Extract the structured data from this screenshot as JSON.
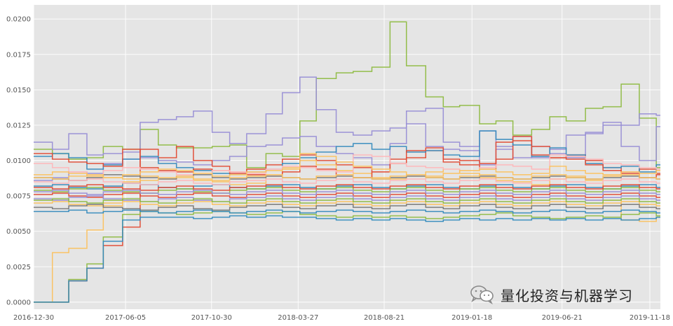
{
  "colors": {
    "plot_background": "#e5e5e5",
    "grid": "#ffffff",
    "palette": [
      "#348abd",
      "#e24a33",
      "#988ed5",
      "#777777",
      "#fbc15e",
      "#8eba42",
      "#ffb5b8",
      "#4a90b8",
      "#c9533b",
      "#a3a3d6",
      "#f2a541",
      "#7fa849",
      "#e89a9d",
      "#5b5b5b"
    ]
  },
  "watermark": {
    "icon": "wechat-icon",
    "text": "量化投资与机器学习"
  },
  "chart_data": {
    "type": "line",
    "title": "",
    "xlabel": "",
    "ylabel": "",
    "x_dates": [
      "2016-12-30",
      "2017-01-31",
      "2017-02-28",
      "2017-03-31",
      "2017-04-28",
      "2017-05-31",
      "2017-06-30",
      "2017-07-31",
      "2017-08-31",
      "2017-09-29",
      "2017-10-31",
      "2017-11-30",
      "2017-12-29",
      "2018-01-31",
      "2018-02-28",
      "2018-03-30",
      "2018-04-27",
      "2018-05-31",
      "2018-06-29",
      "2018-07-31",
      "2018-08-31",
      "2018-09-28",
      "2018-10-31",
      "2018-11-30",
      "2018-12-28",
      "2019-01-31",
      "2019-02-28",
      "2019-03-29",
      "2019-04-30",
      "2019-05-31",
      "2019-06-28",
      "2019-07-31",
      "2019-08-30",
      "2019-09-30",
      "2019-10-31",
      "2019-11-29"
    ],
    "xlim": [
      "2016-12-30",
      "2019-12-06"
    ],
    "x_ticks": [
      "2016-12-30",
      "2017-06-05",
      "2017-10-30",
      "2018-03-27",
      "2018-08-21",
      "2019-01-18",
      "2019-06-21",
      "2019-11-18"
    ],
    "ylim": [
      -0.0005,
      0.021
    ],
    "y_ticks": [
      "0.0000",
      "0.0025",
      "0.0050",
      "0.0075",
      "0.0100",
      "0.0125",
      "0.0150",
      "0.0175",
      "0.0200"
    ],
    "y_tick_values": [
      0,
      0.0025,
      0.005,
      0.0075,
      0.01,
      0.0125,
      0.015,
      0.0175,
      0.02
    ],
    "grid": true,
    "legend": "none",
    "series": [
      {
        "color": "#8eba42",
        "values": [
          0.0108,
          0.0105,
          0.0101,
          0.0102,
          0.011,
          0.0108,
          0.0122,
          0.0111,
          0.0109,
          0.0109,
          0.011,
          0.0111,
          0.0095,
          0.0105,
          0.0103,
          0.0128,
          0.0158,
          0.0162,
          0.0163,
          0.0166,
          0.0198,
          0.0167,
          0.0145,
          0.0138,
          0.0139,
          0.0126,
          0.0128,
          0.0118,
          0.0122,
          0.0131,
          0.0128,
          0.0137,
          0.0138,
          0.0154,
          0.013,
          0.0095
        ]
      },
      {
        "color": "#988ed5",
        "values": [
          0.0113,
          0.0108,
          0.0119,
          0.0104,
          0.0105,
          0.0106,
          0.0127,
          0.0129,
          0.0131,
          0.0135,
          0.012,
          0.0112,
          0.0119,
          0.0133,
          0.0148,
          0.0159,
          0.0136,
          0.012,
          0.0118,
          0.0121,
          0.0123,
          0.0135,
          0.0137,
          0.0113,
          0.011,
          0.0121,
          0.011,
          0.0117,
          0.0102,
          0.0108,
          0.0118,
          0.0119,
          0.0127,
          0.0125,
          0.0133,
          0.0132
        ]
      },
      {
        "color": "#988ed5",
        "values": [
          0.0086,
          0.0088,
          0.0092,
          0.0091,
          0.0098,
          0.0101,
          0.0102,
          0.01,
          0.0099,
          0.0097,
          0.01,
          0.0103,
          0.011,
          0.0111,
          0.0116,
          0.0117,
          0.011,
          0.0105,
          0.0102,
          0.0097,
          0.0112,
          0.0126,
          0.011,
          0.0108,
          0.0107,
          0.0097,
          0.0108,
          0.0102,
          0.011,
          0.0105,
          0.0102,
          0.012,
          0.0125,
          0.011,
          0.01,
          0.0124
        ]
      },
      {
        "color": "#e24a33",
        "values": [
          0.0,
          0.0,
          0.0015,
          0.0024,
          0.004,
          0.0053,
          0.0108,
          0.0102,
          0.011,
          0.01,
          0.0096,
          0.0092,
          0.0094,
          0.0097,
          0.0101,
          0.0104,
          0.01,
          0.0097,
          0.0095,
          0.0092,
          0.0098,
          0.0102,
          0.0107,
          0.0099,
          0.0097,
          0.0094,
          0.0101,
          0.0114,
          0.011,
          0.0102,
          0.0104,
          0.01,
          0.0095,
          0.0092,
          0.0094,
          0.0091
        ]
      },
      {
        "color": "#fbc15e",
        "values": [
          0.0,
          0.0035,
          0.0038,
          0.0051,
          0.0068,
          0.0085,
          0.0089,
          0.0087,
          0.0088,
          0.0086,
          0.0085,
          0.0083,
          0.0084,
          0.009,
          0.0095,
          0.01,
          0.0097,
          0.0093,
          0.0091,
          0.0088,
          0.0087,
          0.0089,
          0.0092,
          0.0094,
          0.0091,
          0.0088,
          0.0086,
          0.0085,
          0.0083,
          0.0087,
          0.0089,
          0.0086,
          0.0072,
          0.0058,
          0.0057,
          0.006
        ]
      },
      {
        "color": "#8eba42",
        "values": [
          0.0,
          0.0,
          0.0016,
          0.0027,
          0.0046,
          0.0062,
          0.0064,
          0.0063,
          0.0062,
          0.0063,
          0.0064,
          0.0063,
          0.0062,
          0.0063,
          0.0064,
          0.0062,
          0.0061,
          0.006,
          0.0061,
          0.006,
          0.0061,
          0.006,
          0.0059,
          0.006,
          0.0061,
          0.0062,
          0.0063,
          0.0061,
          0.006,
          0.0059,
          0.006,
          0.0061,
          0.006,
          0.0062,
          0.0063,
          0.0061
        ]
      },
      {
        "color": "#348abd",
        "values": [
          0.0,
          0.0,
          0.0015,
          0.0024,
          0.0043,
          0.0058,
          0.006,
          0.006,
          0.006,
          0.0059,
          0.006,
          0.0061,
          0.006,
          0.0061,
          0.006,
          0.006,
          0.0059,
          0.0058,
          0.0059,
          0.0058,
          0.0059,
          0.0058,
          0.0057,
          0.0058,
          0.0059,
          0.0058,
          0.0059,
          0.0058,
          0.0059,
          0.0058,
          0.0059,
          0.0058,
          0.0059,
          0.0058,
          0.0059,
          0.006
        ]
      },
      {
        "color": "#348abd",
        "values": [
          0.0103,
          0.0105,
          0.0102,
          0.0094,
          0.0097,
          0.0101,
          0.0103,
          0.0098,
          0.0095,
          0.0093,
          0.0091,
          0.009,
          0.0092,
          0.0094,
          0.0098,
          0.0102,
          0.0106,
          0.011,
          0.0112,
          0.0108,
          0.011,
          0.0106,
          0.0107,
          0.0104,
          0.0103,
          0.0121,
          0.0115,
          0.0111,
          0.0103,
          0.0109,
          0.0104,
          0.0098,
          0.0095,
          0.0096,
          0.0092,
          0.0097
        ]
      },
      {
        "color": "#e24a33",
        "values": [
          0.0105,
          0.0101,
          0.0099,
          0.0098,
          0.0096,
          0.0108,
          0.0095,
          0.0093,
          0.0092,
          0.0094,
          0.0093,
          0.0091,
          0.009,
          0.0089,
          0.0092,
          0.0096,
          0.0094,
          0.009,
          0.0088,
          0.0092,
          0.0101,
          0.0107,
          0.0109,
          0.0101,
          0.01,
          0.0098,
          0.0113,
          0.0117,
          0.0104,
          0.0102,
          0.0101,
          0.0097,
          0.0093,
          0.0091,
          0.0088,
          0.009
        ]
      },
      {
        "color": "#ffb5b8",
        "values": [
          0.0098,
          0.0095,
          0.0092,
          0.009,
          0.0093,
          0.0095,
          0.0094,
          0.0092,
          0.009,
          0.0091,
          0.0093,
          0.0092,
          0.0091,
          0.0094,
          0.0096,
          0.0095,
          0.0093,
          0.0092,
          0.0104,
          0.0103,
          0.0098,
          0.0096,
          0.0095,
          0.0094,
          0.0093,
          0.0095,
          0.0097,
          0.0096,
          0.0094,
          0.0104,
          0.0103,
          0.0101,
          0.0098,
          0.0097,
          0.0095,
          0.0094
        ]
      },
      {
        "color": "#777777",
        "values": [
          0.0088,
          0.0087,
          0.0086,
          0.0088,
          0.009,
          0.0089,
          0.0088,
          0.0087,
          0.0089,
          0.009,
          0.0088,
          0.0087,
          0.0088,
          0.0089,
          0.0088,
          0.0087,
          0.0088,
          0.0089,
          0.0088,
          0.0087,
          0.0088,
          0.0089,
          0.0088,
          0.0087,
          0.0088,
          0.0089,
          0.0088,
          0.0087,
          0.0088,
          0.0089,
          0.0088,
          0.0087,
          0.0088,
          0.0089,
          0.0088,
          0.0087
        ]
      },
      {
        "color": "#fbc15e",
        "values": [
          0.009,
          0.0092,
          0.0091,
          0.0089,
          0.0088,
          0.009,
          0.0092,
          0.0094,
          0.0093,
          0.0091,
          0.0089,
          0.009,
          0.0092,
          0.0093,
          0.0094,
          0.0105,
          0.0103,
          0.0099,
          0.0096,
          0.0094,
          0.0092,
          0.009,
          0.0089,
          0.0091,
          0.0093,
          0.0094,
          0.0092,
          0.009,
          0.0091,
          0.0096,
          0.0093,
          0.0091,
          0.009,
          0.0092,
          0.0091,
          0.0093
        ]
      },
      {
        "color": "#348abd",
        "values": [
          0.0082,
          0.0083,
          0.0081,
          0.008,
          0.0082,
          0.0084,
          0.0083,
          0.0081,
          0.008,
          0.0082,
          0.0083,
          0.0081,
          0.008,
          0.0082,
          0.0083,
          0.0081,
          0.008,
          0.0082,
          0.0083,
          0.0081,
          0.008,
          0.0082,
          0.0083,
          0.0081,
          0.008,
          0.0082,
          0.0083,
          0.0081,
          0.008,
          0.0082,
          0.0083,
          0.0081,
          0.008,
          0.0082,
          0.0083,
          0.0081
        ]
      },
      {
        "color": "#8eba42",
        "values": [
          0.0079,
          0.0078,
          0.008,
          0.0081,
          0.0079,
          0.0078,
          0.0077,
          0.0079,
          0.008,
          0.0078,
          0.0077,
          0.0079,
          0.008,
          0.0081,
          0.0079,
          0.0078,
          0.008,
          0.0081,
          0.0079,
          0.0078,
          0.008,
          0.0081,
          0.0079,
          0.0078,
          0.008,
          0.0081,
          0.0079,
          0.0078,
          0.008,
          0.0081,
          0.0079,
          0.0078,
          0.008,
          0.0081,
          0.0079,
          0.0078
        ]
      },
      {
        "color": "#e24a33",
        "values": [
          0.0076,
          0.0077,
          0.0075,
          0.0074,
          0.0076,
          0.0077,
          0.0075,
          0.0074,
          0.0076,
          0.0077,
          0.0075,
          0.0074,
          0.0076,
          0.0077,
          0.0075,
          0.0074,
          0.0076,
          0.0077,
          0.0075,
          0.0074,
          0.0076,
          0.0077,
          0.0075,
          0.0074,
          0.0076,
          0.0077,
          0.0075,
          0.0074,
          0.0076,
          0.0077,
          0.0075,
          0.0074,
          0.0076,
          0.0077,
          0.0075,
          0.0074
        ]
      },
      {
        "color": "#988ed5",
        "values": [
          0.0073,
          0.0072,
          0.0074,
          0.0075,
          0.0073,
          0.0072,
          0.0071,
          0.0073,
          0.0074,
          0.0072,
          0.0071,
          0.0073,
          0.0074,
          0.0075,
          0.0073,
          0.0072,
          0.0074,
          0.0075,
          0.0073,
          0.0072,
          0.0074,
          0.0075,
          0.0073,
          0.0072,
          0.0074,
          0.0075,
          0.0073,
          0.0072,
          0.0074,
          0.0075,
          0.0073,
          0.0072,
          0.0074,
          0.0075,
          0.0073,
          0.0072
        ]
      },
      {
        "color": "#fbc15e",
        "values": [
          0.007,
          0.0071,
          0.0069,
          0.0068,
          0.007,
          0.0071,
          0.0069,
          0.0068,
          0.007,
          0.0071,
          0.0069,
          0.0068,
          0.007,
          0.0071,
          0.0069,
          0.0068,
          0.007,
          0.0071,
          0.0069,
          0.0068,
          0.007,
          0.0071,
          0.0069,
          0.0068,
          0.007,
          0.0071,
          0.0069,
          0.0068,
          0.007,
          0.0071,
          0.0069,
          0.0068,
          0.007,
          0.0071,
          0.0069,
          0.0068
        ]
      },
      {
        "color": "#777777",
        "values": [
          0.0067,
          0.0066,
          0.0068,
          0.0069,
          0.0067,
          0.0066,
          0.0065,
          0.0067,
          0.0068,
          0.0066,
          0.0065,
          0.0067,
          0.0068,
          0.0069,
          0.0067,
          0.0066,
          0.0068,
          0.0069,
          0.0067,
          0.0066,
          0.0068,
          0.0069,
          0.0067,
          0.0066,
          0.0068,
          0.0069,
          0.0067,
          0.0066,
          0.0068,
          0.0069,
          0.0067,
          0.0066,
          0.0068,
          0.0069,
          0.0067,
          0.0066
        ]
      },
      {
        "color": "#ffb5b8",
        "values": [
          0.0085,
          0.0084,
          0.0086,
          0.0087,
          0.0085,
          0.0084,
          0.0083,
          0.0085,
          0.0086,
          0.0084,
          0.0083,
          0.0085,
          0.0086,
          0.0087,
          0.0085,
          0.0084,
          0.0086,
          0.0087,
          0.0085,
          0.0084,
          0.0086,
          0.0087,
          0.0085,
          0.0084,
          0.0086,
          0.0087,
          0.0085,
          0.0084,
          0.0086,
          0.0087,
          0.0085,
          0.0084,
          0.0086,
          0.0087,
          0.0085,
          0.0084
        ]
      },
      {
        "color": "#348abd",
        "values": [
          0.0064,
          0.0064,
          0.0065,
          0.0063,
          0.0064,
          0.0065,
          0.0064,
          0.0063,
          0.0064,
          0.0065,
          0.0064,
          0.0063,
          0.0064,
          0.0065,
          0.0064,
          0.0063,
          0.0064,
          0.0065,
          0.0064,
          0.0063,
          0.0064,
          0.0065,
          0.0064,
          0.0063,
          0.0064,
          0.0065,
          0.0064,
          0.0063,
          0.0064,
          0.0065,
          0.0064,
          0.0063,
          0.0064,
          0.0065,
          0.0064,
          0.0063
        ]
      },
      {
        "color": "#8eba42",
        "values": [
          0.0072,
          0.0073,
          0.0071,
          0.007,
          0.0072,
          0.0073,
          0.0071,
          0.007,
          0.0072,
          0.0073,
          0.0071,
          0.007,
          0.0072,
          0.0073,
          0.0071,
          0.007,
          0.0072,
          0.0073,
          0.0071,
          0.007,
          0.0072,
          0.0073,
          0.0071,
          0.007,
          0.0072,
          0.0073,
          0.0071,
          0.007,
          0.0072,
          0.0073,
          0.0071,
          0.007,
          0.0072,
          0.0073,
          0.0071,
          0.007
        ]
      },
      {
        "color": "#e24a33",
        "values": [
          0.0081,
          0.008,
          0.0082,
          0.0083,
          0.0081,
          0.008,
          0.0079,
          0.0081,
          0.0082,
          0.008,
          0.0079,
          0.0081,
          0.0082,
          0.0083,
          0.0081,
          0.008,
          0.0082,
          0.0083,
          0.0081,
          0.008,
          0.0082,
          0.0083,
          0.0081,
          0.008,
          0.0082,
          0.0083,
          0.0081,
          0.008,
          0.0082,
          0.0083,
          0.0081,
          0.008,
          0.0082,
          0.0083,
          0.0081,
          0.008
        ]
      },
      {
        "color": "#fbc15e",
        "values": [
          0.0088,
          0.0087,
          0.0089,
          0.009,
          0.0088,
          0.0087,
          0.0086,
          0.0088,
          0.0089,
          0.0087,
          0.0086,
          0.0088,
          0.0089,
          0.009,
          0.0088,
          0.0087,
          0.0089,
          0.009,
          0.0088,
          0.0087,
          0.0089,
          0.009,
          0.0088,
          0.0087,
          0.0089,
          0.009,
          0.0088,
          0.0087,
          0.0089,
          0.009,
          0.0088,
          0.0087,
          0.0089,
          0.009,
          0.0088,
          0.0087
        ]
      },
      {
        "color": "#988ed5",
        "values": [
          0.0078,
          0.0079,
          0.0077,
          0.0076,
          0.0078,
          0.0079,
          0.0077,
          0.0076,
          0.0078,
          0.0079,
          0.0077,
          0.0076,
          0.0078,
          0.0079,
          0.0077,
          0.0076,
          0.0078,
          0.0079,
          0.0077,
          0.0076,
          0.0078,
          0.0079,
          0.0077,
          0.0076,
          0.0078,
          0.0079,
          0.0077,
          0.0076,
          0.0078,
          0.0079,
          0.0077,
          0.0076,
          0.0078,
          0.0079,
          0.0077,
          0.0076
        ]
      }
    ]
  }
}
